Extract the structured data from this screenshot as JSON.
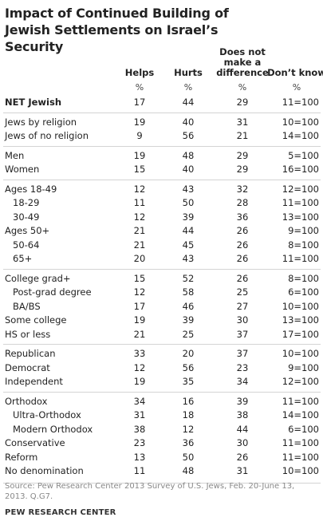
{
  "title": "Impact of Continued Building of Jewish Settlements on Israel’s Security",
  "table": {
    "columns": [
      "Helps",
      "Hurts",
      "Does not make a difference",
      "Don’t know"
    ],
    "units": [
      "%",
      "%",
      "%",
      "%"
    ],
    "groups": [
      {
        "rows": [
          {
            "label": "NET Jewish",
            "cells": [
              17,
              44,
              29,
              "11=100"
            ]
          }
        ]
      },
      {
        "rows": [
          {
            "label": "Jews by religion",
            "cells": [
              19,
              40,
              31,
              "10=100"
            ]
          },
          {
            "label": "Jews of no religion",
            "cells": [
              9,
              56,
              21,
              "14=100"
            ]
          }
        ]
      },
      {
        "rows": [
          {
            "label": "Men",
            "cells": [
              19,
              48,
              29,
              "5=100"
            ]
          },
          {
            "label": "Women",
            "cells": [
              15,
              40,
              29,
              "16=100"
            ]
          }
        ]
      },
      {
        "rows": [
          {
            "label": "Ages 18-49",
            "cells": [
              12,
              43,
              32,
              "12=100"
            ],
            "subrows": [
              {
                "label": "18-29",
                "cells": [
                  11,
                  50,
                  28,
                  "11=100"
                ]
              },
              {
                "label": "30-49",
                "cells": [
                  12,
                  39,
                  36,
                  "13=100"
                ]
              }
            ]
          },
          {
            "label": "Ages 50+",
            "cells": [
              21,
              44,
              26,
              "9=100"
            ],
            "subrows": [
              {
                "label": "50-64",
                "cells": [
                  21,
                  45,
                  26,
                  "8=100"
                ]
              },
              {
                "label": "65+",
                "cells": [
                  20,
                  43,
                  26,
                  "11=100"
                ]
              }
            ]
          }
        ]
      },
      {
        "rows": [
          {
            "label": "College grad+",
            "cells": [
              15,
              52,
              26,
              "8=100"
            ],
            "subrows": [
              {
                "label": "Post-grad degree",
                "cells": [
                  12,
                  58,
                  25,
                  "6=100"
                ]
              },
              {
                "label": "BA/BS",
                "cells": [
                  17,
                  46,
                  27,
                  "10=100"
                ]
              }
            ]
          },
          {
            "label": "Some college",
            "cells": [
              19,
              39,
              30,
              "13=100"
            ]
          },
          {
            "label": "HS or less",
            "cells": [
              21,
              25,
              37,
              "17=100"
            ]
          }
        ]
      },
      {
        "rows": [
          {
            "label": "Republican",
            "cells": [
              33,
              20,
              37,
              "10=100"
            ]
          },
          {
            "label": "Democrat",
            "cells": [
              12,
              56,
              23,
              "9=100"
            ]
          },
          {
            "label": "Independent",
            "cells": [
              19,
              35,
              34,
              "12=100"
            ]
          }
        ]
      },
      {
        "rows": [
          {
            "label": "Orthodox",
            "cells": [
              34,
              16,
              39,
              "11=100"
            ],
            "subrows": [
              {
                "label": "Ultra-Orthodox",
                "cells": [
                  31,
                  18,
                  38,
                  "14=100"
                ]
              },
              {
                "label": "Modern Orthodox",
                "cells": [
                  38,
                  12,
                  44,
                  "6=100"
                ]
              }
            ]
          },
          {
            "label": "Conservative",
            "cells": [
              23,
              36,
              30,
              "11=100"
            ]
          },
          {
            "label": "Reform",
            "cells": [
              13,
              50,
              26,
              "11=100"
            ]
          },
          {
            "label": "No denomination",
            "cells": [
              11,
              48,
              31,
              "10=100"
            ]
          }
        ]
      }
    ]
  },
  "source": "Source: Pew Research Center 2013 Survey of U.S. Jews, Feb. 20-June 13, 2013. Q.G7.",
  "footer": "PEW RESEARCH CENTER"
}
